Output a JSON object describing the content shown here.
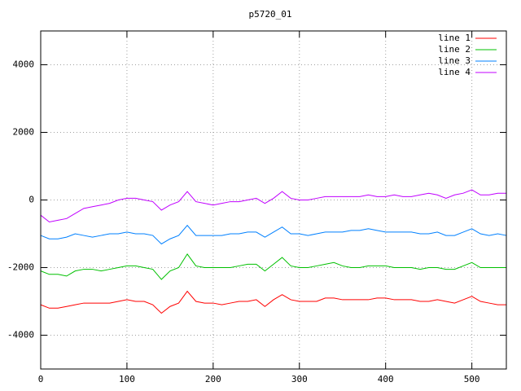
{
  "chart_data": {
    "type": "line",
    "title": "p5720_01",
    "x": [
      0,
      10,
      20,
      30,
      40,
      50,
      60,
      70,
      80,
      90,
      100,
      110,
      120,
      130,
      140,
      150,
      160,
      170,
      180,
      190,
      200,
      210,
      220,
      230,
      240,
      250,
      260,
      270,
      280,
      290,
      300,
      310,
      320,
      330,
      340,
      350,
      360,
      370,
      380,
      390,
      400,
      410,
      420,
      430,
      440,
      450,
      460,
      470,
      480,
      490,
      500,
      510,
      520,
      530,
      540
    ],
    "series": [
      {
        "name": "line 1",
        "color": "#ff0000",
        "values": [
          -3100,
          -3200,
          -3200,
          -3150,
          -3100,
          -3050,
          -3050,
          -3050,
          -3050,
          -3000,
          -2950,
          -3000,
          -3000,
          -3100,
          -3350,
          -3150,
          -3050,
          -2700,
          -3000,
          -3050,
          -3050,
          -3100,
          -3050,
          -3000,
          -3000,
          -2950,
          -3150,
          -2950,
          -2800,
          -2950,
          -3000,
          -3000,
          -3000,
          -2900,
          -2900,
          -2950,
          -2950,
          -2950,
          -2950,
          -2900,
          -2900,
          -2950,
          -2950,
          -2950,
          -3000,
          -3000,
          -2950,
          -3000,
          -3050,
          -2950,
          -2850,
          -3000,
          -3050,
          -3100,
          -3100
        ]
      },
      {
        "name": "line 2",
        "color": "#00c000",
        "values": [
          -2100,
          -2200,
          -2200,
          -2250,
          -2100,
          -2050,
          -2050,
          -2100,
          -2050,
          -2000,
          -1950,
          -1950,
          -2000,
          -2050,
          -2350,
          -2100,
          -2000,
          -1600,
          -1950,
          -2000,
          -2000,
          -2000,
          -2000,
          -1950,
          -1900,
          -1900,
          -2100,
          -1900,
          -1700,
          -1950,
          -2000,
          -2000,
          -1950,
          -1900,
          -1850,
          -1950,
          -2000,
          -2000,
          -1950,
          -1950,
          -1950,
          -2000,
          -2000,
          -2000,
          -2050,
          -2000,
          -2000,
          -2050,
          -2050,
          -1950,
          -1850,
          -2000,
          -2000,
          -2000,
          -2000
        ]
      },
      {
        "name": "line 3",
        "color": "#0080ff",
        "values": [
          -1050,
          -1150,
          -1150,
          -1100,
          -1000,
          -1050,
          -1100,
          -1050,
          -1000,
          -1000,
          -950,
          -1000,
          -1000,
          -1050,
          -1300,
          -1150,
          -1050,
          -750,
          -1050,
          -1050,
          -1050,
          -1050,
          -1000,
          -1000,
          -950,
          -950,
          -1100,
          -950,
          -800,
          -1000,
          -1000,
          -1050,
          -1000,
          -950,
          -950,
          -950,
          -900,
          -900,
          -850,
          -900,
          -950,
          -950,
          -950,
          -950,
          -1000,
          -1000,
          -950,
          -1050,
          -1050,
          -950,
          -850,
          -1000,
          -1050,
          -1000,
          -1050
        ]
      },
      {
        "name": "line 4",
        "color": "#c000ff",
        "values": [
          -450,
          -650,
          -600,
          -550,
          -400,
          -250,
          -200,
          -150,
          -100,
          0,
          50,
          50,
          0,
          -50,
          -300,
          -150,
          -50,
          250,
          -50,
          -100,
          -150,
          -100,
          -50,
          -50,
          0,
          50,
          -100,
          50,
          250,
          50,
          0,
          0,
          50,
          100,
          100,
          100,
          100,
          100,
          150,
          100,
          100,
          150,
          100,
          100,
          150,
          200,
          150,
          50,
          150,
          200,
          300,
          150,
          150,
          200,
          200
        ]
      }
    ],
    "xlim": [
      0,
      540
    ],
    "xticks": [
      0,
      100,
      200,
      300,
      400,
      500
    ],
    "ylim": [
      -5000,
      5000
    ],
    "yticks": [
      -4000,
      -2000,
      0,
      2000,
      4000
    ],
    "grid": true,
    "legend": "top-right"
  }
}
